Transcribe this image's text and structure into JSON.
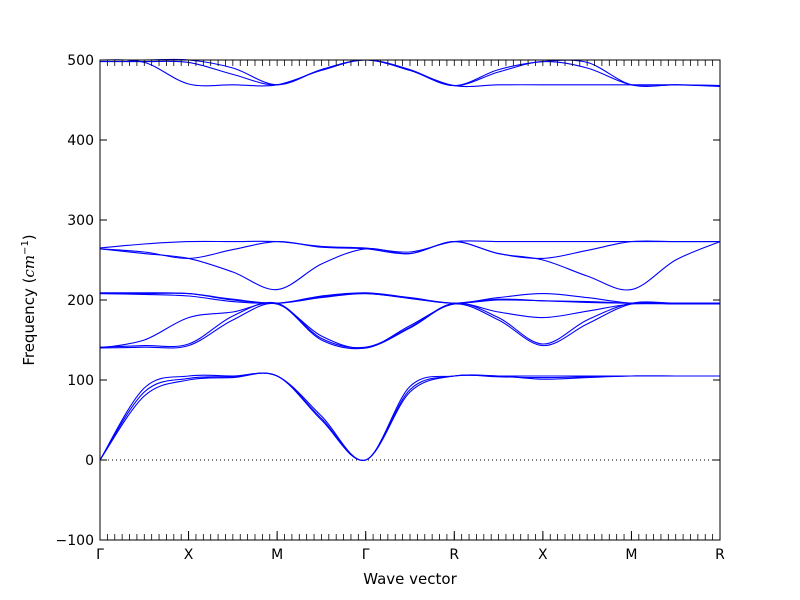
{
  "chart_data": {
    "type": "line",
    "title": "",
    "xlabel": "Wave vector",
    "ylabel": "Frequency (cm⁻¹)",
    "ylabel_parts": {
      "prefix": "Frequency (",
      "unit": "cm",
      "exponent": "−1",
      "suffix": ")"
    },
    "ylim": [
      -100,
      500
    ],
    "yticks": [
      -100,
      0,
      100,
      200,
      300,
      400,
      500
    ],
    "ytick_labels": [
      "−100",
      "0",
      "100",
      "200",
      "300",
      "400",
      "500"
    ],
    "xlim": [
      0,
      7
    ],
    "high_symmetry_points": [
      {
        "label": "Γ",
        "x": 0
      },
      {
        "label": "X",
        "x": 1
      },
      {
        "label": "M",
        "x": 2
      },
      {
        "label": "Γ",
        "x": 3
      },
      {
        "label": "R",
        "x": 4
      },
      {
        "label": "X",
        "x": 5
      },
      {
        "label": "M",
        "x": 6
      },
      {
        "label": "R",
        "x": 7
      }
    ],
    "zero_line": {
      "value": 0,
      "style": "dotted"
    },
    "line_color": "#0000ff",
    "series": [
      {
        "x": [
          0,
          0.5,
          1,
          1.5,
          2,
          2.5,
          3,
          3.5,
          4,
          4.5,
          5,
          5.5,
          6,
          6.5,
          7
        ],
        "y": [
          0,
          80,
          100,
          103,
          105,
          50,
          0,
          85,
          105,
          104,
          103,
          104,
          105,
          105,
          105
        ]
      },
      {
        "x": [
          0,
          0.5,
          1,
          1.5,
          2,
          2.5,
          3,
          3.5,
          4,
          4.5,
          5,
          5.5,
          6,
          6.5,
          7
        ],
        "y": [
          0,
          85,
          102,
          104,
          105,
          52,
          0,
          88,
          105,
          105,
          101,
          103,
          105,
          105,
          105
        ]
      },
      {
        "x": [
          0,
          0.5,
          1,
          1.5,
          2,
          2.5,
          3,
          3.5,
          4,
          4.5,
          5,
          5.5,
          6,
          6.5,
          7
        ],
        "y": [
          0,
          90,
          105,
          105,
          105,
          55,
          0,
          92,
          105,
          105,
          105,
          105,
          105,
          105,
          105
        ]
      },
      {
        "x": [
          0,
          0.5,
          1,
          1.5,
          2,
          2.5,
          3,
          3.5,
          4,
          4.5,
          5,
          5.5,
          6,
          6.5,
          7
        ],
        "y": [
          140,
          141,
          143,
          175,
          195,
          150,
          140,
          165,
          195,
          175,
          143,
          170,
          195,
          195,
          195
        ]
      },
      {
        "x": [
          0,
          0.5,
          1,
          1.5,
          2,
          2.5,
          3,
          3.5,
          4,
          4.5,
          5,
          5.5,
          6,
          6.5,
          7
        ],
        "y": [
          140,
          150,
          178,
          185,
          195,
          155,
          140,
          168,
          195,
          185,
          178,
          186,
          195,
          195,
          195
        ]
      },
      {
        "x": [
          0,
          0.5,
          1,
          1.5,
          2,
          2.5,
          3,
          3.5,
          4,
          4.5,
          5,
          5.5,
          6,
          6.5,
          7
        ],
        "y": [
          141,
          143,
          145,
          180,
          196,
          152,
          141,
          166,
          196,
          178,
          145,
          175,
          196,
          196,
          196
        ]
      },
      {
        "x": [
          0,
          0.5,
          1,
          1.5,
          2,
          2.5,
          3,
          3.5,
          4,
          4.5,
          5,
          5.5,
          6,
          6.5,
          7
        ],
        "y": [
          208,
          208,
          208,
          200,
          196,
          203,
          208,
          202,
          196,
          200,
          199,
          198,
          196,
          196,
          196
        ]
      },
      {
        "x": [
          0,
          0.5,
          1,
          1.5,
          2,
          2.5,
          3,
          3.5,
          4,
          4.5,
          5,
          5.5,
          6,
          6.5,
          7
        ],
        "y": [
          208,
          207,
          205,
          198,
          196,
          204,
          208,
          202,
          196,
          203,
          208,
          203,
          196,
          196,
          196
        ]
      },
      {
        "x": [
          0,
          0.5,
          1,
          1.5,
          2,
          2.5,
          3,
          3.5,
          4,
          4.5,
          5,
          5.5,
          6,
          6.5,
          7
        ],
        "y": [
          209,
          209,
          208,
          201,
          196,
          205,
          209,
          203,
          196,
          201,
          199,
          197,
          196,
          196,
          196
        ]
      },
      {
        "x": [
          0,
          0.5,
          1,
          1.5,
          2,
          2.5,
          3,
          3.5,
          4,
          4.5,
          5,
          5.5,
          6,
          6.5,
          7
        ],
        "y": [
          264,
          258,
          252,
          235,
          213,
          245,
          264,
          258,
          273,
          258,
          250,
          230,
          213,
          250,
          273
        ]
      },
      {
        "x": [
          0,
          0.5,
          1,
          1.5,
          2,
          2.5,
          3,
          3.5,
          4,
          4.5,
          5,
          5.5,
          6,
          6.5,
          7
        ],
        "y": [
          264,
          260,
          252,
          263,
          273,
          266,
          264,
          258,
          273,
          258,
          252,
          262,
          273,
          273,
          273
        ]
      },
      {
        "x": [
          0,
          0.5,
          1,
          1.5,
          2,
          2.5,
          3,
          3.5,
          4,
          4.5,
          5,
          5.5,
          6,
          6.5,
          7
        ],
        "y": [
          265,
          270,
          273,
          273,
          273,
          267,
          265,
          260,
          273,
          273,
          273,
          273,
          273,
          273,
          273
        ]
      },
      {
        "x": [
          0,
          0.5,
          1,
          1.5,
          2,
          2.5,
          3,
          3.5,
          4,
          4.5,
          5,
          5.5,
          6,
          6.5,
          7
        ],
        "y": [
          500,
          497,
          470,
          469,
          469,
          487,
          500,
          488,
          468,
          485,
          498,
          490,
          469,
          469,
          468
        ]
      },
      {
        "x": [
          0,
          0.5,
          1,
          1.5,
          2,
          2.5,
          3,
          3.5,
          4,
          4.5,
          5,
          5.5,
          6,
          6.5,
          7
        ],
        "y": [
          498,
          498,
          497,
          482,
          469,
          488,
          500,
          487,
          468,
          488,
          498,
          497,
          469,
          469,
          467
        ]
      },
      {
        "x": [
          0,
          0.5,
          1,
          1.5,
          2,
          2.5,
          3,
          3.5,
          4,
          4.5,
          5,
          5.5,
          6,
          6.5,
          7
        ],
        "y": [
          500,
          500,
          500,
          490,
          469,
          488,
          500,
          487,
          468,
          469,
          469,
          469,
          469,
          469,
          468
        ]
      }
    ]
  }
}
